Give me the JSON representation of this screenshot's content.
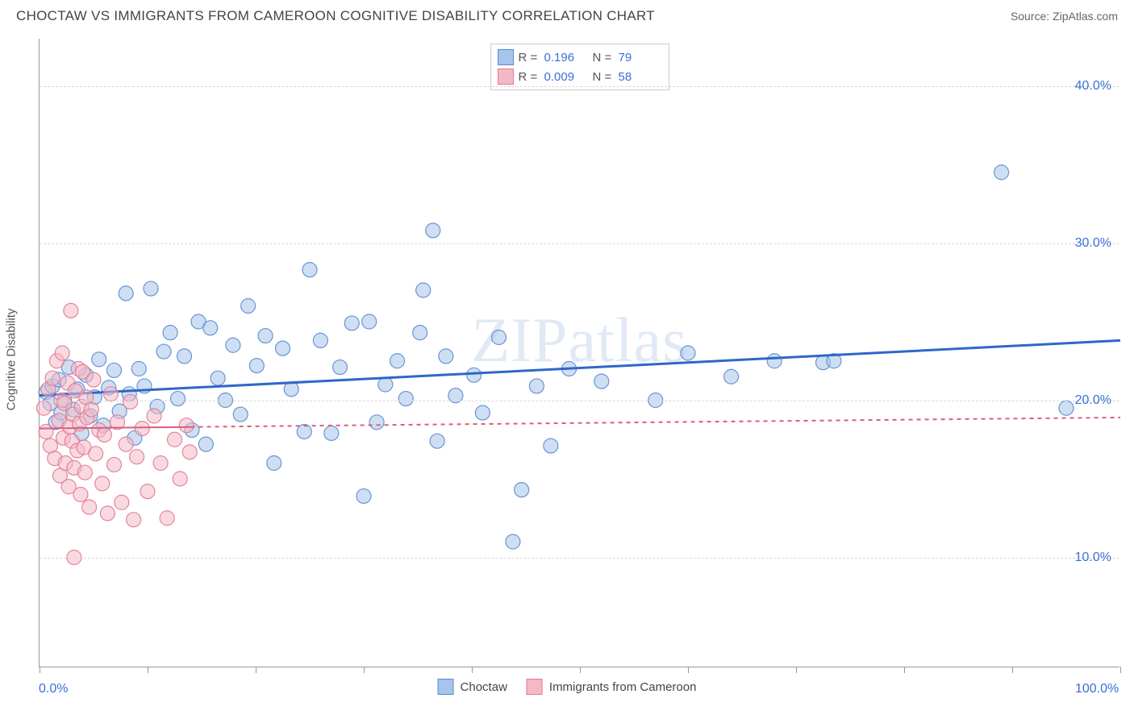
{
  "header": {
    "title": "CHOCTAW VS IMMIGRANTS FROM CAMEROON COGNITIVE DISABILITY CORRELATION CHART",
    "source": "Source: ZipAtlas.com"
  },
  "chart": {
    "type": "scatter",
    "watermark": "ZIPatlas",
    "y_axis_title": "Cognitive Disability",
    "xlim": [
      0,
      100
    ],
    "ylim": [
      3,
      43
    ],
    "x_ticks": [
      0,
      10,
      20,
      30,
      40,
      50,
      60,
      70,
      80,
      90,
      100
    ],
    "x_tick_labels_shown": {
      "0": "0.0%",
      "100": "100.0%"
    },
    "y_grid": [
      10,
      20,
      30,
      40
    ],
    "y_tick_labels": {
      "10": "10.0%",
      "20": "20.0%",
      "30": "30.0%",
      "40": "40.0%"
    },
    "marker_radius": 9,
    "marker_opacity": 0.55,
    "marker_stroke_opacity": 0.9,
    "background_color": "#ffffff",
    "grid_color": "#d8d8d8",
    "axis_color": "#999999",
    "value_color": "#3b6fd6"
  },
  "series": [
    {
      "name": "Choctaw",
      "fill": "#a7c4ea",
      "stroke": "#5b8ad0",
      "trend": {
        "x1": 0,
        "y1": 20.3,
        "x2": 100,
        "y2": 23.8,
        "stroke": "#2e67c8",
        "width": 3,
        "dash": ""
      },
      "points": [
        [
          0.6,
          20.5
        ],
        [
          1.0,
          19.8
        ],
        [
          1.2,
          20.9
        ],
        [
          1.5,
          18.6
        ],
        [
          1.8,
          21.3
        ],
        [
          2.0,
          19.2
        ],
        [
          2.3,
          20.0
        ],
        [
          2.7,
          22.1
        ],
        [
          3.1,
          19.4
        ],
        [
          3.5,
          20.7
        ],
        [
          3.9,
          17.9
        ],
        [
          4.3,
          21.6
        ],
        [
          4.7,
          19.0
        ],
        [
          5.1,
          20.2
        ],
        [
          5.5,
          22.6
        ],
        [
          5.9,
          18.4
        ],
        [
          6.4,
          20.8
        ],
        [
          6.9,
          21.9
        ],
        [
          7.4,
          19.3
        ],
        [
          8.0,
          26.8
        ],
        [
          8.3,
          20.4
        ],
        [
          8.8,
          17.6
        ],
        [
          9.2,
          22.0
        ],
        [
          9.7,
          20.9
        ],
        [
          10.3,
          27.1
        ],
        [
          10.9,
          19.6
        ],
        [
          11.5,
          23.1
        ],
        [
          12.1,
          24.3
        ],
        [
          12.8,
          20.1
        ],
        [
          13.4,
          22.8
        ],
        [
          14.1,
          18.1
        ],
        [
          14.7,
          25.0
        ],
        [
          15.4,
          17.2
        ],
        [
          15.8,
          24.6
        ],
        [
          16.5,
          21.4
        ],
        [
          17.2,
          20.0
        ],
        [
          17.9,
          23.5
        ],
        [
          18.6,
          19.1
        ],
        [
          19.3,
          26.0
        ],
        [
          20.1,
          22.2
        ],
        [
          20.9,
          24.1
        ],
        [
          21.7,
          16.0
        ],
        [
          22.5,
          23.3
        ],
        [
          23.3,
          20.7
        ],
        [
          24.5,
          18.0
        ],
        [
          25.0,
          28.3
        ],
        [
          26.0,
          23.8
        ],
        [
          27.0,
          17.9
        ],
        [
          27.8,
          22.1
        ],
        [
          28.9,
          24.9
        ],
        [
          30.0,
          13.9
        ],
        [
          30.5,
          25.0
        ],
        [
          31.2,
          18.6
        ],
        [
          32.0,
          21.0
        ],
        [
          33.1,
          22.5
        ],
        [
          33.9,
          20.1
        ],
        [
          35.2,
          24.3
        ],
        [
          35.5,
          27.0
        ],
        [
          36.4,
          30.8
        ],
        [
          36.8,
          17.4
        ],
        [
          37.6,
          22.8
        ],
        [
          38.5,
          20.3
        ],
        [
          40.2,
          21.6
        ],
        [
          41.0,
          19.2
        ],
        [
          42.5,
          24.0
        ],
        [
          43.8,
          11.0
        ],
        [
          44.6,
          14.3
        ],
        [
          46.0,
          20.9
        ],
        [
          47.3,
          17.1
        ],
        [
          49.0,
          22.0
        ],
        [
          68.0,
          22.5
        ],
        [
          72.5,
          22.4
        ],
        [
          73.5,
          22.5
        ],
        [
          89.0,
          34.5
        ],
        [
          95.0,
          19.5
        ],
        [
          52.0,
          21.2
        ],
        [
          57.0,
          20.0
        ],
        [
          60.0,
          23.0
        ],
        [
          64.0,
          21.5
        ]
      ]
    },
    {
      "name": "Immigrants from Cameroon",
      "fill": "#f4b9c6",
      "stroke": "#e07a94",
      "trend": {
        "x1": 0,
        "y1": 18.2,
        "x2": 100,
        "y2": 18.9,
        "stroke": "#d85f7d",
        "width": 2,
        "dash": "5,5",
        "solid_until_x": 14
      },
      "points": [
        [
          0.4,
          19.5
        ],
        [
          0.6,
          18.0
        ],
        [
          0.8,
          20.7
        ],
        [
          1.0,
          17.1
        ],
        [
          1.2,
          21.4
        ],
        [
          1.4,
          16.3
        ],
        [
          1.6,
          22.5
        ],
        [
          1.8,
          18.7
        ],
        [
          1.9,
          15.2
        ],
        [
          2.0,
          20.0
        ],
        [
          2.1,
          23.0
        ],
        [
          2.2,
          17.6
        ],
        [
          2.3,
          19.8
        ],
        [
          2.4,
          16.0
        ],
        [
          2.6,
          21.1
        ],
        [
          2.7,
          14.5
        ],
        [
          2.8,
          18.3
        ],
        [
          2.9,
          25.7
        ],
        [
          3.0,
          17.4
        ],
        [
          3.1,
          19.1
        ],
        [
          3.2,
          15.7
        ],
        [
          3.2,
          10.0
        ],
        [
          3.3,
          20.6
        ],
        [
          3.5,
          16.8
        ],
        [
          3.6,
          22.0
        ],
        [
          3.7,
          18.5
        ],
        [
          3.8,
          14.0
        ],
        [
          3.9,
          19.6
        ],
        [
          4.0,
          21.8
        ],
        [
          4.1,
          17.0
        ],
        [
          4.2,
          15.4
        ],
        [
          4.3,
          20.2
        ],
        [
          4.4,
          18.9
        ],
        [
          4.6,
          13.2
        ],
        [
          4.8,
          19.4
        ],
        [
          5.0,
          21.3
        ],
        [
          5.2,
          16.6
        ],
        [
          5.5,
          18.1
        ],
        [
          5.8,
          14.7
        ],
        [
          6.0,
          17.8
        ],
        [
          6.3,
          12.8
        ],
        [
          6.6,
          20.4
        ],
        [
          6.9,
          15.9
        ],
        [
          7.2,
          18.6
        ],
        [
          7.6,
          13.5
        ],
        [
          8.0,
          17.2
        ],
        [
          8.4,
          19.9
        ],
        [
          8.7,
          12.4
        ],
        [
          9.0,
          16.4
        ],
        [
          9.5,
          18.2
        ],
        [
          10.0,
          14.2
        ],
        [
          10.6,
          19.0
        ],
        [
          11.2,
          16.0
        ],
        [
          11.8,
          12.5
        ],
        [
          12.5,
          17.5
        ],
        [
          13.0,
          15.0
        ],
        [
          13.6,
          18.4
        ],
        [
          13.9,
          16.7
        ]
      ]
    }
  ],
  "legend_top": {
    "rows": [
      {
        "swatch_fill": "#a7c4ea",
        "swatch_stroke": "#5b8ad0",
        "r_label": "R =",
        "r_value": "0.196",
        "n_label": "N =",
        "n_value": "79"
      },
      {
        "swatch_fill": "#f4b9c6",
        "swatch_stroke": "#e07a94",
        "r_label": "R =",
        "r_value": "0.009",
        "n_label": "N =",
        "n_value": "58"
      }
    ]
  },
  "legend_bottom": {
    "items": [
      {
        "swatch_fill": "#a7c4ea",
        "swatch_stroke": "#5b8ad0",
        "label": "Choctaw"
      },
      {
        "swatch_fill": "#f4b9c6",
        "swatch_stroke": "#e07a94",
        "label": "Immigrants from Cameroon"
      }
    ]
  }
}
